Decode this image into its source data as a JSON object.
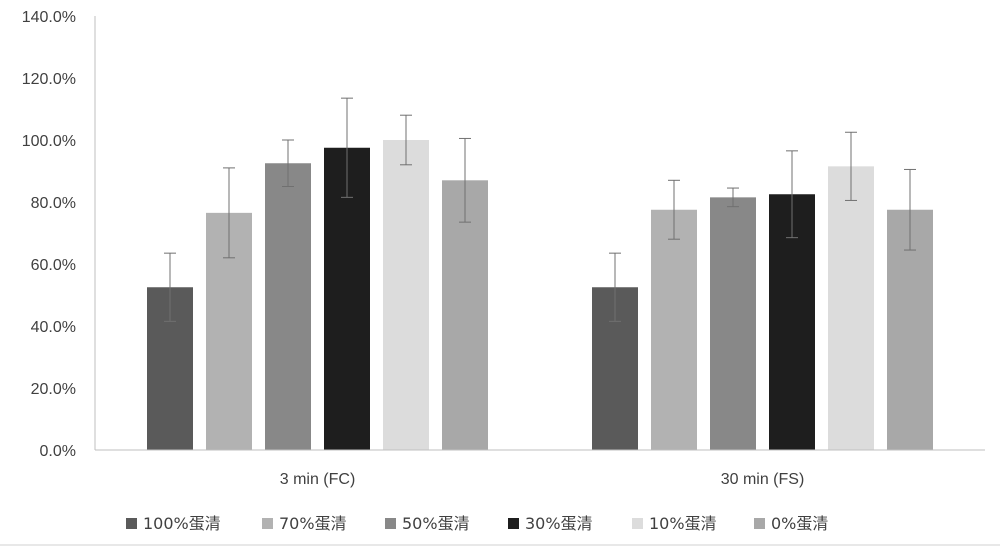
{
  "chart_data": {
    "type": "bar",
    "categories": [
      "3 min (FC)",
      "30 min (FS)"
    ],
    "y_ticks": [
      "0.0%",
      "20.0%",
      "40.0%",
      "60.0%",
      "80.0%",
      "100.0%",
      "120.0%",
      "140.0%"
    ],
    "ylim": [
      0,
      140
    ],
    "grid": false,
    "legend_position": "bottom",
    "series": [
      {
        "name": "100%蛋清",
        "values": [
          52.5,
          52.5
        ],
        "errors": [
          11,
          11
        ],
        "color": "#5a5a5a"
      },
      {
        "name": "70%蛋清",
        "values": [
          76.5,
          77.5
        ],
        "errors": [
          14.5,
          9.5
        ],
        "color": "#b2b2b2"
      },
      {
        "name": "50%蛋清",
        "values": [
          92.5,
          81.5
        ],
        "errors": [
          7.5,
          3
        ],
        "color": "#888888"
      },
      {
        "name": "30%蛋清",
        "values": [
          97.5,
          82.5
        ],
        "errors": [
          16,
          14
        ],
        "color": "#1e1e1e"
      },
      {
        "name": "10%蛋清",
        "values": [
          100,
          91.5
        ],
        "errors": [
          8,
          11
        ],
        "color": "#dcdcdc"
      },
      {
        "name": "0%蛋清",
        "values": [
          87,
          77.5
        ],
        "errors": [
          13.5,
          13
        ],
        "color": "#a8a8a8"
      }
    ]
  }
}
